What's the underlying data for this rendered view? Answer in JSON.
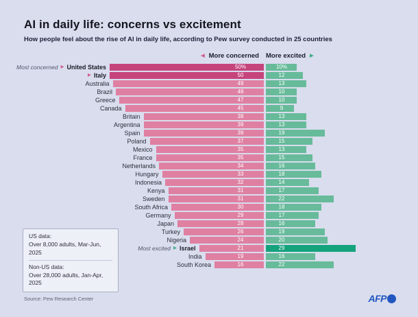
{
  "header": {
    "title": "AI in daily life: concerns vs excitement",
    "subtitle": "How people feel about the rise of AI in daily life, according to Pew survey conducted in 25 countries"
  },
  "legend": {
    "concerned_label": "More concerned",
    "excited_label": "More excited"
  },
  "chart_data": {
    "type": "bar",
    "orientation": "diverging-horizontal",
    "title": "AI in daily life: concerns vs excitement",
    "unit": "%",
    "value_range": [
      0,
      50
    ],
    "series": [
      {
        "name": "More concerned",
        "color": "#df80a2",
        "highlight_color": "#c5447c"
      },
      {
        "name": "More excited",
        "color": "#67bb9a",
        "highlight_color": "#14a37c"
      }
    ],
    "rows": [
      {
        "country": "United States",
        "concerned": 50,
        "excited": 10,
        "c_label": "50%",
        "e_label": "10%",
        "prefix": "Most concerned",
        "arrow": "pink",
        "bold": true,
        "highlight": "concerned"
      },
      {
        "country": "Italy",
        "concerned": 50,
        "excited": 12,
        "c_label": "50",
        "e_label": "12",
        "prefix": "",
        "arrow": "pink",
        "bold": true,
        "highlight": "concerned"
      },
      {
        "country": "Australia",
        "concerned": 49,
        "excited": 13,
        "c_label": "49",
        "e_label": "13"
      },
      {
        "country": "Brazil",
        "concerned": 48,
        "excited": 10,
        "c_label": "48",
        "e_label": "10"
      },
      {
        "country": "Greece",
        "concerned": 47,
        "excited": 10,
        "c_label": "47",
        "e_label": "10"
      },
      {
        "country": "Canada",
        "concerned": 45,
        "excited": 9,
        "c_label": "45",
        "e_label": "9"
      },
      {
        "country": "Britain",
        "concerned": 39,
        "excited": 13,
        "c_label": "39",
        "e_label": "13"
      },
      {
        "country": "Argentina",
        "concerned": 39,
        "excited": 13,
        "c_label": "39",
        "e_label": "13"
      },
      {
        "country": "Spain",
        "concerned": 39,
        "excited": 19,
        "c_label": "39",
        "e_label": "19"
      },
      {
        "country": "Poland",
        "concerned": 37,
        "excited": 15,
        "c_label": "37",
        "e_label": "15"
      },
      {
        "country": "Mexico",
        "concerned": 35,
        "excited": 13,
        "c_label": "35",
        "e_label": "13"
      },
      {
        "country": "France",
        "concerned": 35,
        "excited": 15,
        "c_label": "35",
        "e_label": "15"
      },
      {
        "country": "Netherlands",
        "concerned": 34,
        "excited": 16,
        "c_label": "34",
        "e_label": "16"
      },
      {
        "country": "Hungary",
        "concerned": 33,
        "excited": 18,
        "c_label": "33",
        "e_label": "18"
      },
      {
        "country": "Indonesia",
        "concerned": 32,
        "excited": 14,
        "c_label": "32",
        "e_label": "14"
      },
      {
        "country": "Kenya",
        "concerned": 31,
        "excited": 17,
        "c_label": "31",
        "e_label": "17"
      },
      {
        "country": "Sweden",
        "concerned": 31,
        "excited": 22,
        "c_label": "31",
        "e_label": "22"
      },
      {
        "country": "South Africa",
        "concerned": 30,
        "excited": 18,
        "c_label": "30",
        "e_label": "18"
      },
      {
        "country": "Germany",
        "concerned": 29,
        "excited": 17,
        "c_label": "29",
        "e_label": "17"
      },
      {
        "country": "Japan",
        "concerned": 28,
        "excited": 16,
        "c_label": "28",
        "e_label": "16"
      },
      {
        "country": "Turkey",
        "concerned": 26,
        "excited": 19,
        "c_label": "26",
        "e_label": "19"
      },
      {
        "country": "Nigeria",
        "concerned": 24,
        "excited": 20,
        "c_label": "24",
        "e_label": "20"
      },
      {
        "country": "Israel",
        "concerned": 21,
        "excited": 29,
        "c_label": "21",
        "e_label": "29",
        "prefix": "Most excited",
        "arrow": "teal",
        "bold": true,
        "highlight": "excited"
      },
      {
        "country": "India",
        "concerned": 19,
        "excited": 16,
        "c_label": "19",
        "e_label": "16"
      },
      {
        "country": "South Korea",
        "concerned": 16,
        "excited": 22,
        "c_label": "16",
        "e_label": "22"
      }
    ]
  },
  "note_box": {
    "us_title": "US data:",
    "us_text": "Over 8,000 adults, Mar-Jun, 2025",
    "non_us_title": "Non-US data:",
    "non_us_text": "Over 28,000 adults, Jan-Apr, 2025"
  },
  "footer": {
    "source": "Source: Pew Research Center",
    "logo_text": "AFP"
  }
}
